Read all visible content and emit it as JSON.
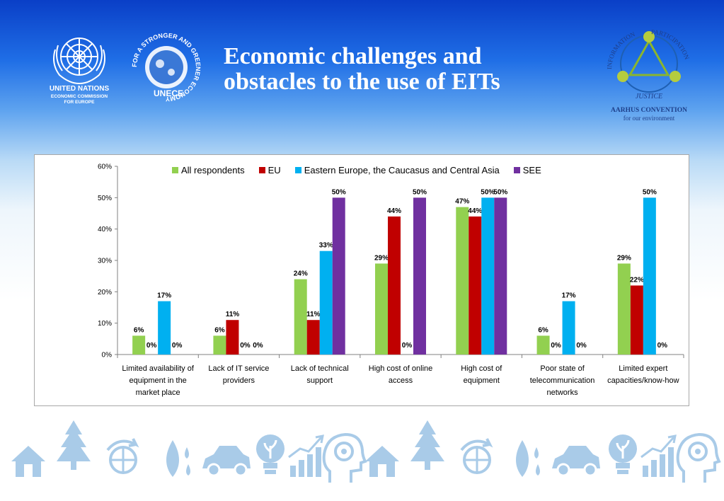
{
  "slide": {
    "title_line1": "Economic challenges and",
    "title_line2": "obstacles to the use of EITs"
  },
  "logos": {
    "un": {
      "line1": "UNITED NATIONS",
      "line2": "ECONOMIC COMMISSION",
      "line3": "FOR EUROPE"
    },
    "unece": {
      "ring_text": "FOR A STRONGER AND GREENER ECONOMY",
      "name": "UNECE"
    },
    "aarhus": {
      "ring1": "INFORMATION",
      "ring2": "PARTICIPATION",
      "ring3": "JUSTICE",
      "name": "AARHUS CONVENTION",
      "tagline": "for our environment"
    }
  },
  "colors": {
    "all_respondents": "#92d050",
    "eu": "#c00000",
    "eastern_europe": "#00b0f0",
    "see": "#7030a0"
  },
  "chart_data": {
    "type": "bar",
    "categories": [
      [
        "Limited availability of",
        "equipment in the",
        "market place"
      ],
      [
        "Lack of IT service",
        "providers"
      ],
      [
        "Lack of technical",
        "support"
      ],
      [
        "High cost of online",
        "access"
      ],
      [
        "High cost of",
        "equipment"
      ],
      [
        "Poor state of",
        "telecommunication",
        "networks"
      ],
      [
        "Limited expert",
        "capacities/know-how"
      ]
    ],
    "series": [
      {
        "name": "All respondents",
        "color": "#92d050",
        "values": [
          6,
          6,
          24,
          29,
          47,
          6,
          29
        ],
        "labels": [
          "6%",
          "6%",
          "24%",
          "29%",
          "47%",
          "6%",
          "29%"
        ]
      },
      {
        "name": "EU",
        "color": "#c00000",
        "values": [
          0,
          11,
          11,
          44,
          44,
          0,
          22
        ],
        "labels": [
          "0%",
          "11%",
          "11%",
          "44%",
          "44%",
          "0%",
          "22%"
        ]
      },
      {
        "name": "Eastern Europe, the Caucasus and Central Asia",
        "color": "#00b0f0",
        "values": [
          17,
          0,
          33,
          0,
          50,
          17,
          50
        ],
        "labels": [
          "17%",
          "0%",
          "33%",
          "0%",
          "50%",
          "17%",
          "50%"
        ]
      },
      {
        "name": "SEE",
        "color": "#7030a0",
        "values": [
          0,
          0,
          50,
          50,
          50,
          0,
          0
        ],
        "labels": [
          "0%",
          "0%",
          "50%",
          "50%",
          "50%",
          "0%",
          "0%"
        ]
      }
    ],
    "ylim": [
      0,
      60
    ],
    "yticks": [
      "0%",
      "10%",
      "20%",
      "30%",
      "40%",
      "50%",
      "60%"
    ],
    "legend_position": "top",
    "grid": false
  },
  "footer": {
    "icons": [
      "house-icon",
      "tree-icon",
      "globe-recycle-icon",
      "leaf-drops-icon",
      "car-icon",
      "lightbulb-plant-icon",
      "growth-chart-icon",
      "head-gear-icon"
    ]
  }
}
